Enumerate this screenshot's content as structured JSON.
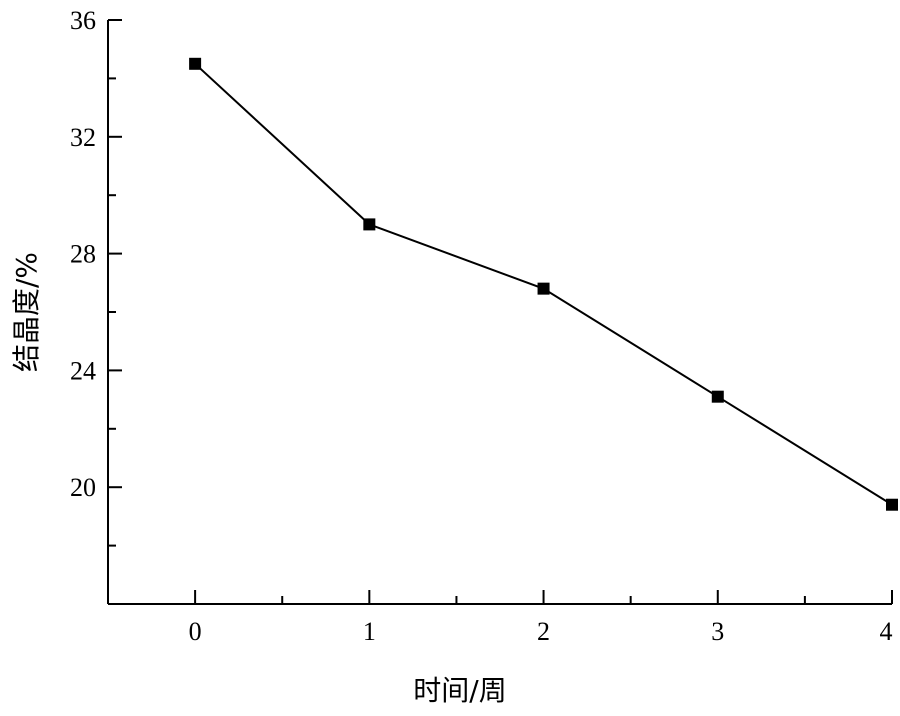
{
  "chart_data": {
    "type": "line",
    "title": "",
    "xlabel": "时间/周",
    "ylabel": "结晶度/%",
    "x": [
      0,
      1,
      2,
      3,
      4
    ],
    "xlim": [
      -0.5,
      4
    ],
    "ylim": [
      16,
      36
    ],
    "x_ticks": [
      0,
      1,
      2,
      3,
      4
    ],
    "y_ticks": [
      20,
      24,
      28,
      32,
      36
    ],
    "grid": false,
    "legend": "none",
    "series": [
      {
        "values": [
          34.5,
          29.0,
          26.8,
          23.1,
          19.4
        ],
        "color": "#000000",
        "marker": "square"
      }
    ]
  }
}
